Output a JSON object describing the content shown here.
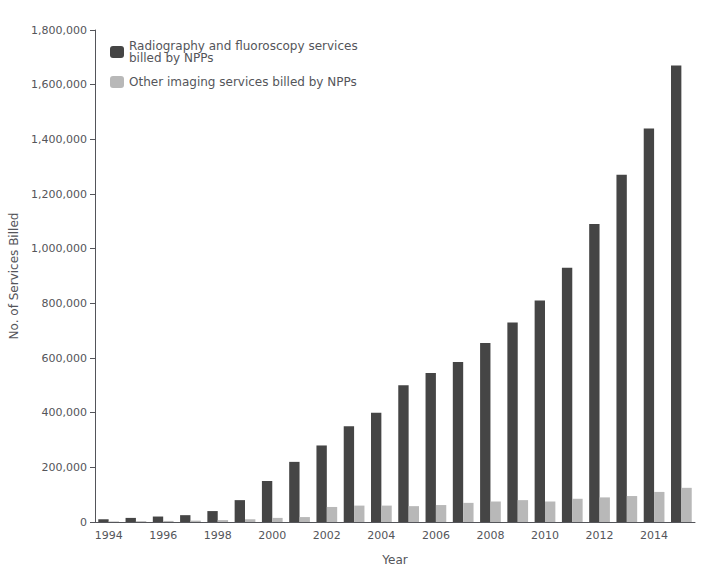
{
  "chart_data": {
    "type": "bar",
    "xlabel": "Year",
    "ylabel": "No. of Services Billed",
    "categories": [
      "1994",
      null,
      "1996",
      null,
      "1998",
      null,
      "2000",
      null,
      "2002",
      null,
      "2004",
      null,
      "2006",
      null,
      "2008",
      null,
      "2010",
      null,
      "2012",
      null,
      "2014",
      null
    ],
    "series": [
      {
        "name": "Radiography and fluoroscopy services\nbilled by NPPs",
        "color": "#454545",
        "values": [
          10000,
          15000,
          20000,
          25000,
          40000,
          80000,
          150000,
          220000,
          280000,
          350000,
          400000,
          500000,
          545000,
          585000,
          655000,
          730000,
          810000,
          930000,
          1090000,
          1270000,
          1440000,
          1670000
        ]
      },
      {
        "name": "Other imaging services billed by NPPs",
        "color": "#b8b8b8",
        "values": [
          2000,
          3000,
          4000,
          5000,
          7000,
          10000,
          15000,
          18000,
          55000,
          60000,
          60000,
          58000,
          62000,
          70000,
          75000,
          80000,
          75000,
          85000,
          90000,
          95000,
          110000,
          125000
        ]
      }
    ],
    "ylim": [
      0,
      1800000
    ],
    "yticks": [
      0,
      {
        "value": 200000,
        "label": "200,000"
      },
      {
        "value": 400000,
        "label": "400,000"
      },
      {
        "value": 600000,
        "label": "600,000"
      },
      {
        "value": 800000,
        "label": "800,000"
      },
      {
        "value": 1000000,
        "label": "1,000,000"
      },
      {
        "value": 1200000,
        "label": "1,200,000"
      },
      {
        "value": 1400000,
        "label": "1,400,000"
      },
      {
        "value": 1600000,
        "label": "1,600,000"
      },
      {
        "value": 1800000,
        "label": "1,800,000"
      }
    ],
    "grid": false,
    "legend": "upper left"
  }
}
